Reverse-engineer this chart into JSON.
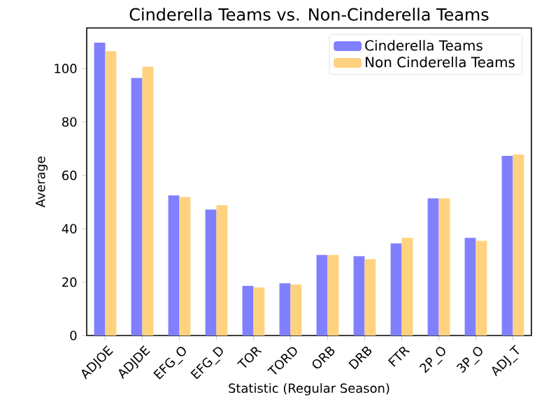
{
  "chart_data": {
    "type": "bar",
    "title": "Cinderella Teams vs. Non-Cinderella Teams",
    "xlabel": "Statistic (Regular Season)",
    "ylabel": "Average",
    "categories": [
      "ADJOE",
      "ADJDE",
      "EFG_O",
      "EFG_D",
      "TOR",
      "TORD",
      "ORB",
      "DRB",
      "FTR",
      "2P_O",
      "3P_O",
      "ADJ_T"
    ],
    "series": [
      {
        "name": "Cinderella Teams",
        "color": "#8080ff",
        "values": [
          109.7,
          96.5,
          52.5,
          47.2,
          18.6,
          19.6,
          30.2,
          29.7,
          34.5,
          51.4,
          36.6,
          67.3
        ]
      },
      {
        "name": "Non Cinderella Teams",
        "color": "#ffd27f",
        "values": [
          106.5,
          100.7,
          51.9,
          48.8,
          18.0,
          19.1,
          30.2,
          28.6,
          36.6,
          51.4,
          35.5,
          67.8
        ]
      }
    ],
    "ylim": [
      0,
      115.2
    ],
    "yticks": [
      0,
      20,
      40,
      60,
      80,
      100
    ],
    "legend": "top right"
  }
}
